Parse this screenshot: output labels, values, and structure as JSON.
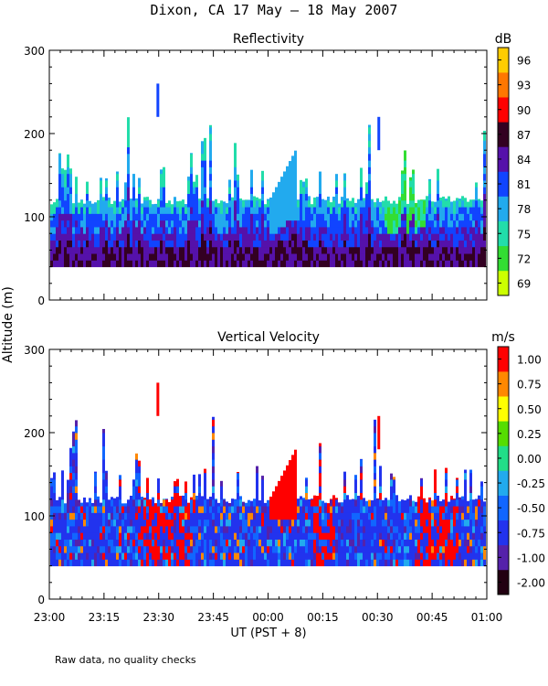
{
  "page": {
    "title": "Dixon, CA 17 May – 18 May 2007",
    "footnote": "Raw data, no quality checks",
    "ylabel": "Altitude (m)",
    "xlabel": "UT  (PST + 8)"
  },
  "chart_data": [
    {
      "type": "heatmap",
      "title": "Reflectivity",
      "ylim": [
        0,
        300
      ],
      "yticks": [
        "0",
        "100",
        "200",
        "300"
      ],
      "xlim": [
        "23:00",
        "01:00"
      ],
      "xticks": [
        "23:00",
        "23:15",
        "23:30",
        "23:45",
        "00:00",
        "00:15",
        "00:30",
        "00:45",
        "01:00"
      ],
      "colorbar": {
        "unit": "dB",
        "ticks": [
          "69",
          "72",
          "75",
          "78",
          "81",
          "84",
          "87",
          "90",
          "93",
          "96"
        ],
        "colors": [
          "#ccff00",
          "#33dd33",
          "#22ddaa",
          "#22aaee",
          "#1144ff",
          "#5511aa",
          "#330022",
          "#ff0000",
          "#ff7700",
          "#ffcc00"
        ]
      }
    },
    {
      "type": "heatmap",
      "title": "Vertical Velocity",
      "ylim": [
        0,
        300
      ],
      "yticks": [
        "0",
        "100",
        "200",
        "300"
      ],
      "xlim": [
        "23:00",
        "01:00"
      ],
      "xticks": [
        "23:00",
        "23:15",
        "23:30",
        "23:45",
        "00:00",
        "00:15",
        "00:30",
        "00:45",
        "01:00"
      ],
      "colorbar": {
        "unit": "m/s",
        "ticks": [
          "-2.00",
          "-1.00",
          "-0.75",
          "-0.50",
          "-0.25",
          "0.00",
          "0.25",
          "0.50",
          "0.75",
          "1.00"
        ],
        "colors": [
          "#220011",
          "#5522aa",
          "#2233ee",
          "#1166ff",
          "#22aaee",
          "#22dd88",
          "#55dd00",
          "#ffff00",
          "#ff8800",
          "#ff0000"
        ]
      }
    }
  ]
}
